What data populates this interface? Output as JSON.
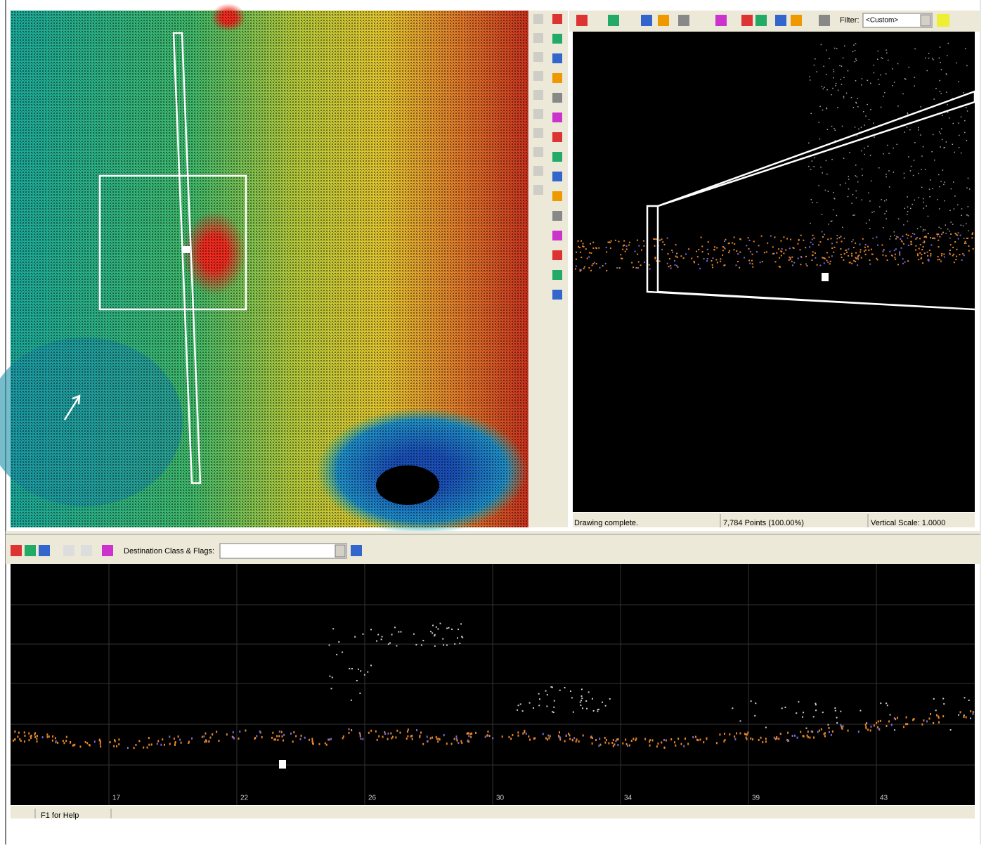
{
  "view3d_toolbar": {
    "filter_label": "Filter:",
    "filter_value": "<Custom>"
  },
  "status_bar": {
    "message": "Drawing complete.",
    "points": "7,784 Points (100.00%)",
    "vertical_scale": "Vertical Scale: 1.0000"
  },
  "profile_toolbar": {
    "destination_label": "Destination Class & Flags:"
  },
  "profile_view": {
    "x_labels": [
      "17",
      "22",
      "26",
      "30",
      "34",
      "39",
      "43"
    ]
  },
  "help_bar": {
    "text": "F1 for Help"
  }
}
